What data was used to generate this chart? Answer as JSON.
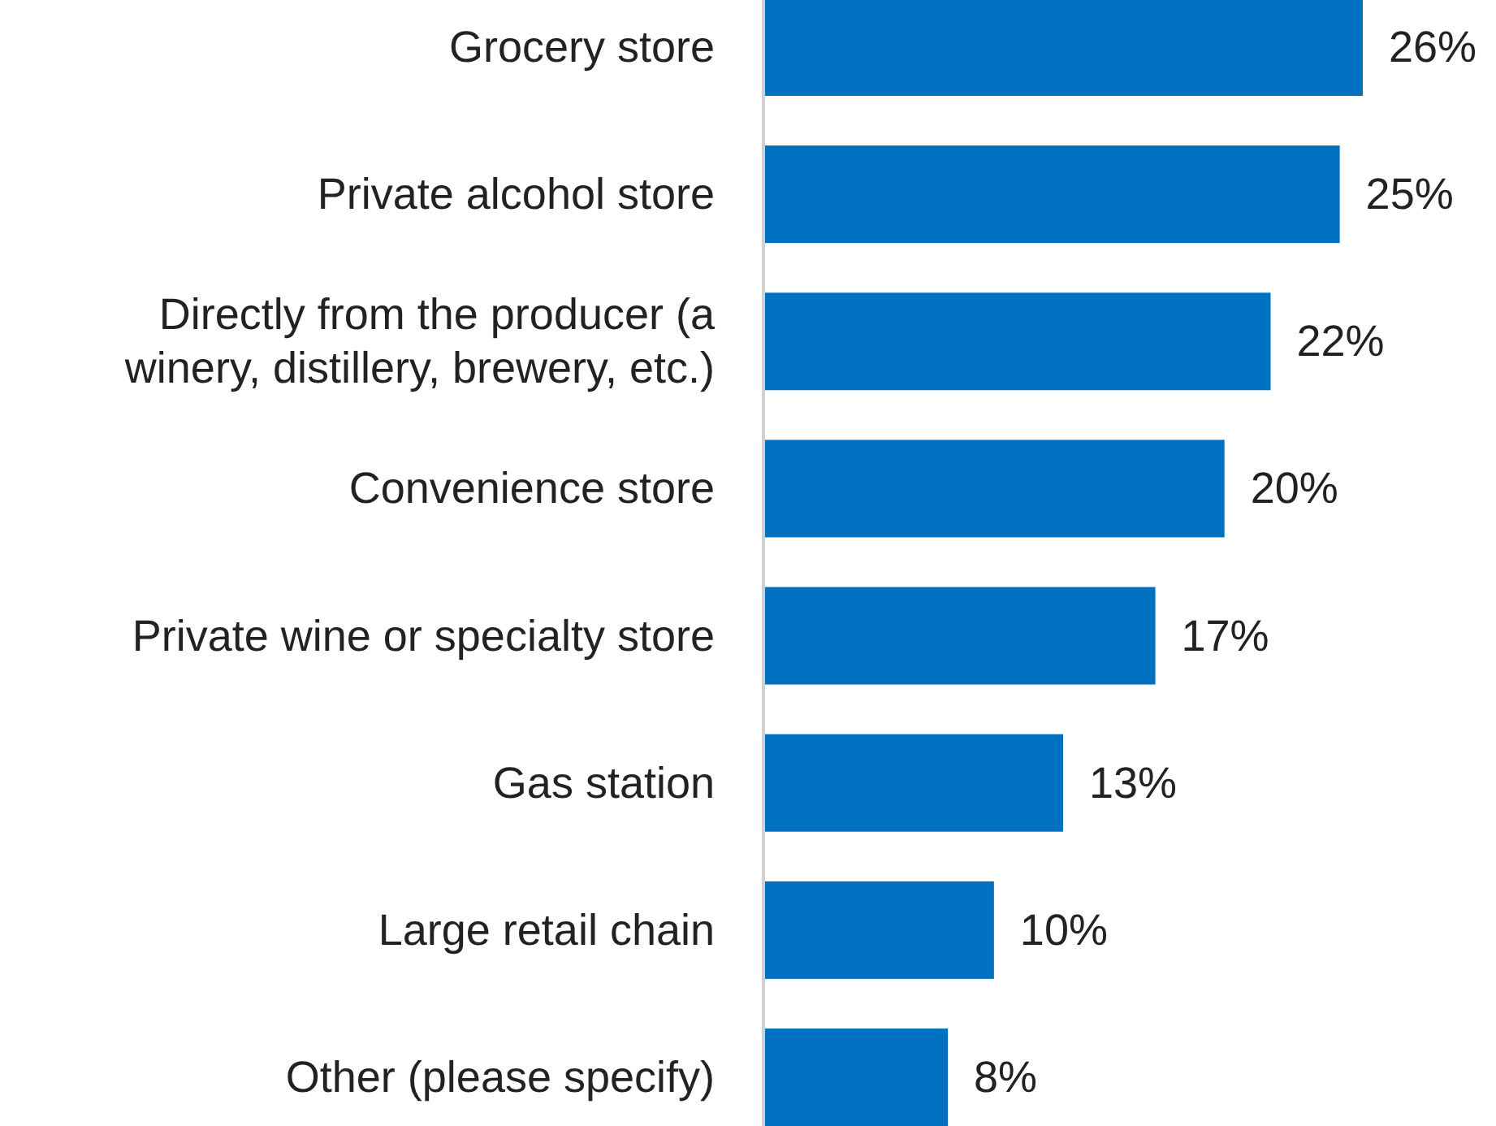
{
  "chart_data": {
    "type": "bar",
    "orientation": "horizontal",
    "categories": [
      "Grocery store",
      "Private alcohol store",
      "Directly from the producer (a winery, distillery, brewery, etc.)",
      "Convenience store",
      "Private wine or specialty store",
      "Gas station",
      "Large retail chain",
      "Other (please specify)"
    ],
    "values": [
      26,
      25,
      22,
      20,
      17,
      13,
      10,
      8
    ],
    "value_labels": [
      "26%",
      "25%",
      "22%",
      "20%",
      "17%",
      "13%",
      "10%",
      "8%"
    ],
    "color": "#0070c0"
  }
}
